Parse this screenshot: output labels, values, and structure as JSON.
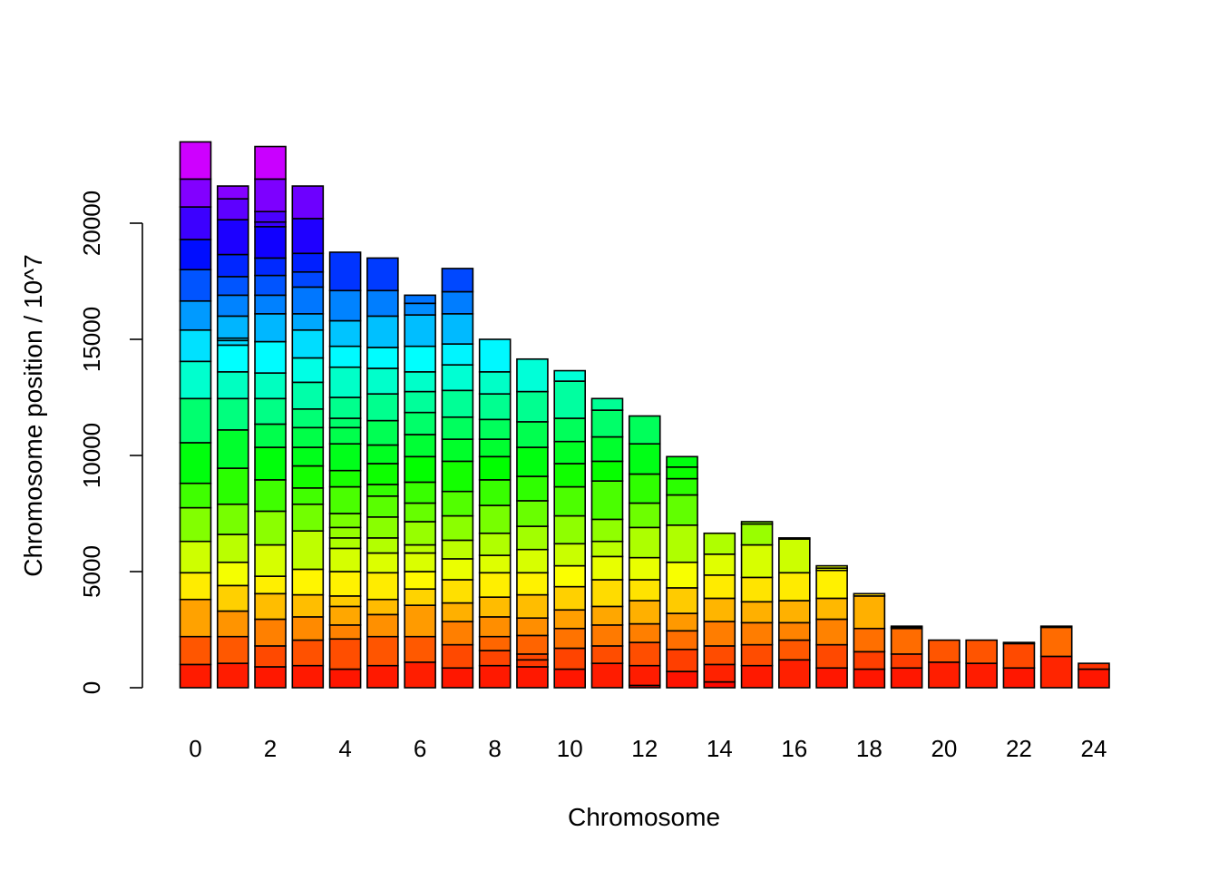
{
  "chart_data": {
    "type": "bar",
    "stacked": true,
    "title": "",
    "xlabel": "Chromosome",
    "ylabel": "Chromosome position / 10^7",
    "ylim": [
      0,
      24000
    ],
    "yticks": [
      0,
      5000,
      10000,
      15000,
      20000
    ],
    "xtick_labels": [
      "0",
      "2",
      "4",
      "6",
      "8",
      "10",
      "12",
      "14",
      "16",
      "18",
      "20",
      "22",
      "24"
    ],
    "grid": false,
    "legend": "none",
    "color_scale": "rainbow-red-to-magenta",
    "categories": [
      "0",
      "1",
      "2",
      "3",
      "4",
      "5",
      "6",
      "7",
      "8",
      "9",
      "10",
      "11",
      "12",
      "13",
      "14",
      "15",
      "16",
      "17",
      "18",
      "19",
      "20",
      "21",
      "22",
      "23",
      "24"
    ],
    "segment_boundaries": [
      [
        1000,
        2200,
        3800,
        4950,
        6300,
        7750,
        8800,
        10550,
        12450,
        14050,
        15400,
        16650,
        18000,
        19300,
        20700,
        21900,
        23500
      ],
      [
        1050,
        2200,
        3300,
        4400,
        5400,
        6600,
        7900,
        9450,
        11100,
        12450,
        13600,
        14750,
        14950,
        15050,
        16000,
        16900,
        17700,
        18650,
        20150,
        21050,
        21600
      ],
      [
        900,
        1800,
        2950,
        4050,
        4800,
        6150,
        7600,
        8950,
        10350,
        11350,
        12450,
        13550,
        14900,
        16100,
        16900,
        17750,
        18500,
        19850,
        20050,
        20500,
        21900,
        23300
      ],
      [
        950,
        2050,
        3050,
        4000,
        5100,
        6750,
        7900,
        8600,
        9550,
        10350,
        11200,
        12000,
        13150,
        14200,
        15400,
        16100,
        17250,
        17900,
        18700,
        20200,
        21600
      ],
      [
        800,
        2100,
        2700,
        3500,
        3950,
        5000,
        6000,
        6450,
        6900,
        7500,
        8650,
        9350,
        10500,
        11200,
        11600,
        12500,
        13800,
        14700,
        15800,
        17100,
        18750
      ],
      [
        950,
        2200,
        3150,
        3800,
        4950,
        5800,
        6450,
        7350,
        8250,
        8750,
        9650,
        10450,
        11500,
        12650,
        13750,
        14650,
        16000,
        17100,
        18500
      ],
      [
        1100,
        2200,
        3550,
        4250,
        5000,
        5800,
        6150,
        7150,
        7950,
        8850,
        9950,
        10900,
        11850,
        12750,
        13600,
        14700,
        16050,
        16550,
        16900
      ],
      [
        850,
        1850,
        2850,
        3650,
        4650,
        5550,
        6350,
        7400,
        8450,
        9750,
        10700,
        11650,
        12800,
        13900,
        14800,
        16100,
        17050,
        18050
      ],
      [
        950,
        1600,
        2200,
        3050,
        3900,
        4950,
        5700,
        6650,
        7850,
        8950,
        9950,
        10700,
        11550,
        12650,
        13600,
        15000
      ],
      [
        900,
        1200,
        1450,
        2250,
        3000,
        4000,
        4950,
        5950,
        6950,
        8050,
        9100,
        10350,
        11450,
        12750,
        14150
      ],
      [
        800,
        1700,
        2550,
        3350,
        4350,
        5250,
        6200,
        7400,
        8650,
        9650,
        10600,
        11600,
        13200,
        13650
      ],
      [
        1050,
        1800,
        2700,
        3500,
        4650,
        5650,
        6300,
        7250,
        8900,
        9750,
        10800,
        11950,
        12450
      ],
      [
        100,
        950,
        1950,
        2750,
        3750,
        4650,
        5600,
        6900,
        7950,
        9200,
        10500,
        11700
      ],
      [
        700,
        1650,
        2450,
        3200,
        4300,
        5400,
        7000,
        8300,
        9000,
        9500,
        9950
      ],
      [
        250,
        1000,
        1800,
        2850,
        3850,
        4850,
        5750,
        6650
      ],
      [
        950,
        1850,
        2800,
        3700,
        4750,
        6150,
        7050,
        7150
      ],
      [
        1200,
        2050,
        2800,
        3750,
        4950,
        6400,
        6450
      ],
      [
        850,
        1850,
        2950,
        3850,
        5050,
        5150,
        5250
      ],
      [
        800,
        1550,
        2550,
        3950,
        4050
      ],
      [
        850,
        1450,
        2550,
        2600,
        2650
      ],
      [
        1100,
        2050
      ],
      [
        1050,
        2050
      ],
      [
        850,
        1900,
        1950
      ],
      [
        1350,
        2600,
        2650
      ],
      [
        800,
        1050
      ]
    ]
  }
}
